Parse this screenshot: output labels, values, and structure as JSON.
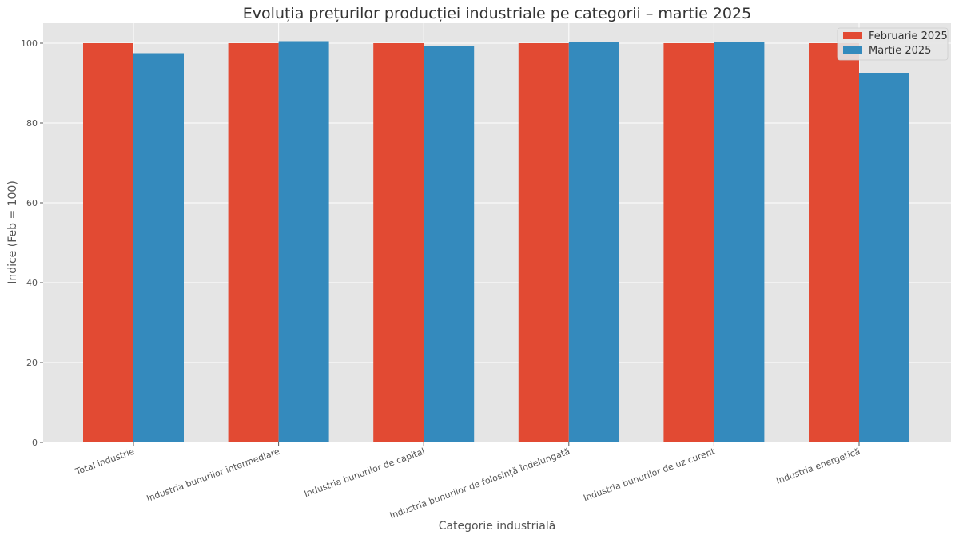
{
  "chart_data": {
    "type": "bar",
    "title": "Evoluția prețurilor producției industriale pe categorii – martie 2025",
    "xlabel": "Categorie industrială",
    "ylabel": "Indice (Feb = 100)",
    "categories": [
      "Total industrie",
      "Industria bunurilor intermediare",
      "Industria bunurilor de capital",
      "Industria bunurilor de folosință îndelungată",
      "Industria bunurilor de uz curent",
      "Industria energetică"
    ],
    "series": [
      {
        "name": "Februarie 2025",
        "color": "#E24A33",
        "values": [
          100,
          100,
          100,
          100,
          100,
          100
        ]
      },
      {
        "name": "Martie 2025",
        "color": "#348ABD",
        "values": [
          97.5,
          100.5,
          99.4,
          100.2,
          100.2,
          92.6
        ]
      }
    ],
    "ylim": [
      0,
      105
    ],
    "yticks": [
      0,
      20,
      40,
      60,
      80,
      100
    ],
    "grid": true,
    "legend_position": "top-right"
  }
}
